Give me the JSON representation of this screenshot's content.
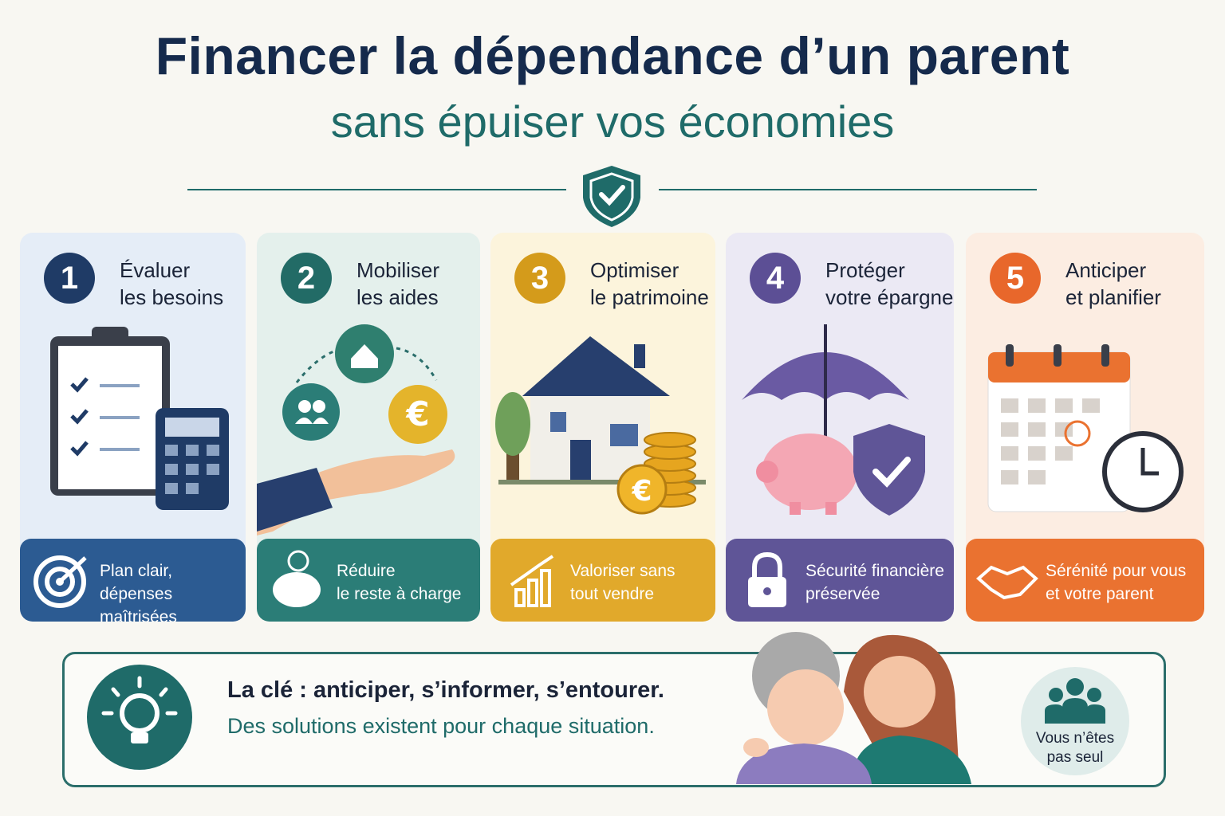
{
  "header": {
    "title": "Financer la dépendance d’un parent",
    "subtitle": "sans épuiser vos économies"
  },
  "steps": [
    {
      "number": 1,
      "title": [
        "Évaluer",
        "les besoins"
      ],
      "benefit": [
        "Plan clair,",
        "dépenses maîtrisées"
      ]
    },
    {
      "number": 2,
      "title": [
        "Mobiliser",
        "les aides"
      ],
      "benefit": [
        "Réduire",
        "le reste à charge"
      ]
    },
    {
      "number": 3,
      "title": [
        "Optimiser",
        "le patrimoine"
      ],
      "benefit": [
        "Valoriser sans",
        "tout vendre"
      ]
    },
    {
      "number": 4,
      "title": [
        "Protéger",
        "votre épargne"
      ],
      "benefit": [
        "Sécurité financière",
        "préservée"
      ]
    },
    {
      "number": 5,
      "title": [
        "Anticiper",
        "et planifier"
      ],
      "benefit": [
        "Sérénité pour vous",
        "et votre parent"
      ]
    }
  ],
  "key": {
    "headline": "La clé : anticiper, s’informer, s’entourer.",
    "text": "Des solutions existent pour chaque situation.",
    "badge": [
      "Vous n’êtes",
      "pas seul"
    ]
  }
}
